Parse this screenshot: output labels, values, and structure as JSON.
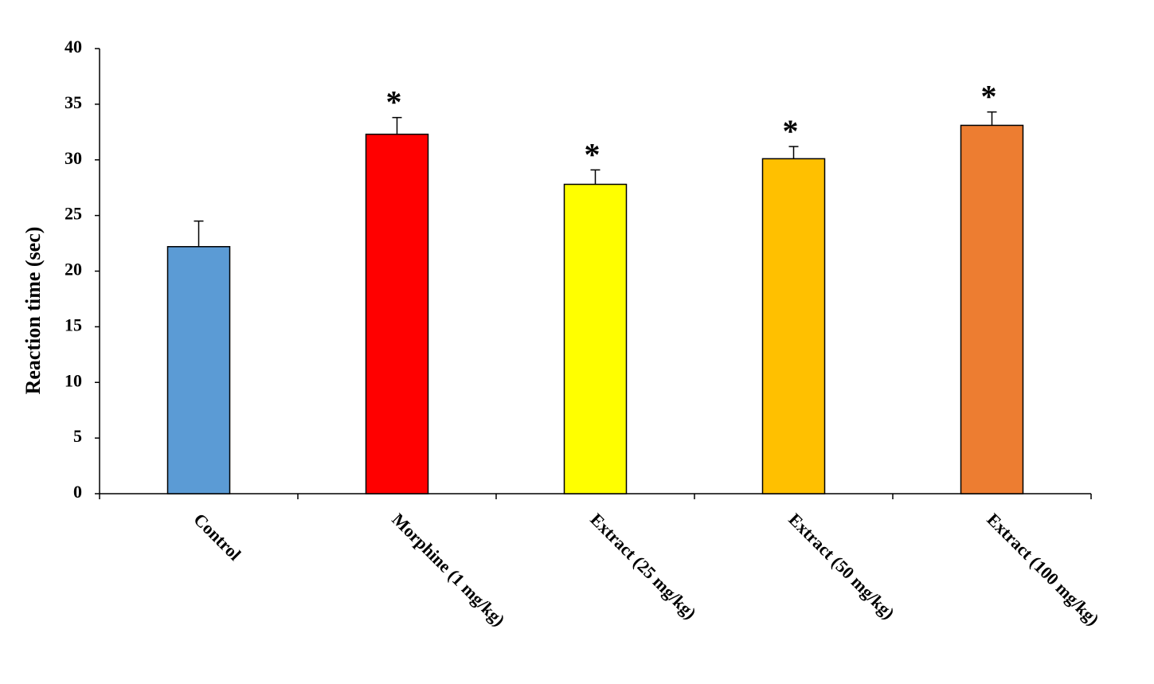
{
  "chart_data": {
    "type": "bar",
    "y_label": "Reaction time (sec)",
    "categories": [
      "Control",
      "Morphine (1 mg/kg)",
      "Extract (25 mg/kg)",
      "Extract (50 mg/kg)",
      "Extract (100 mg/kg)"
    ],
    "values": [
      22.2,
      32.3,
      27.8,
      30.1,
      33.1
    ],
    "errors": [
      2.3,
      1.5,
      1.3,
      1.1,
      1.2
    ],
    "colors": [
      "#5b9bd5",
      "#ff0000",
      "#ffff00",
      "#ffc000",
      "#ed7d31"
    ],
    "annotations": [
      null,
      "*",
      "*",
      "*",
      "*"
    ],
    "ylim": [
      0,
      40
    ],
    "yticks": [
      0,
      5,
      10,
      15,
      20,
      25,
      30,
      35,
      40
    ],
    "grid": false
  }
}
